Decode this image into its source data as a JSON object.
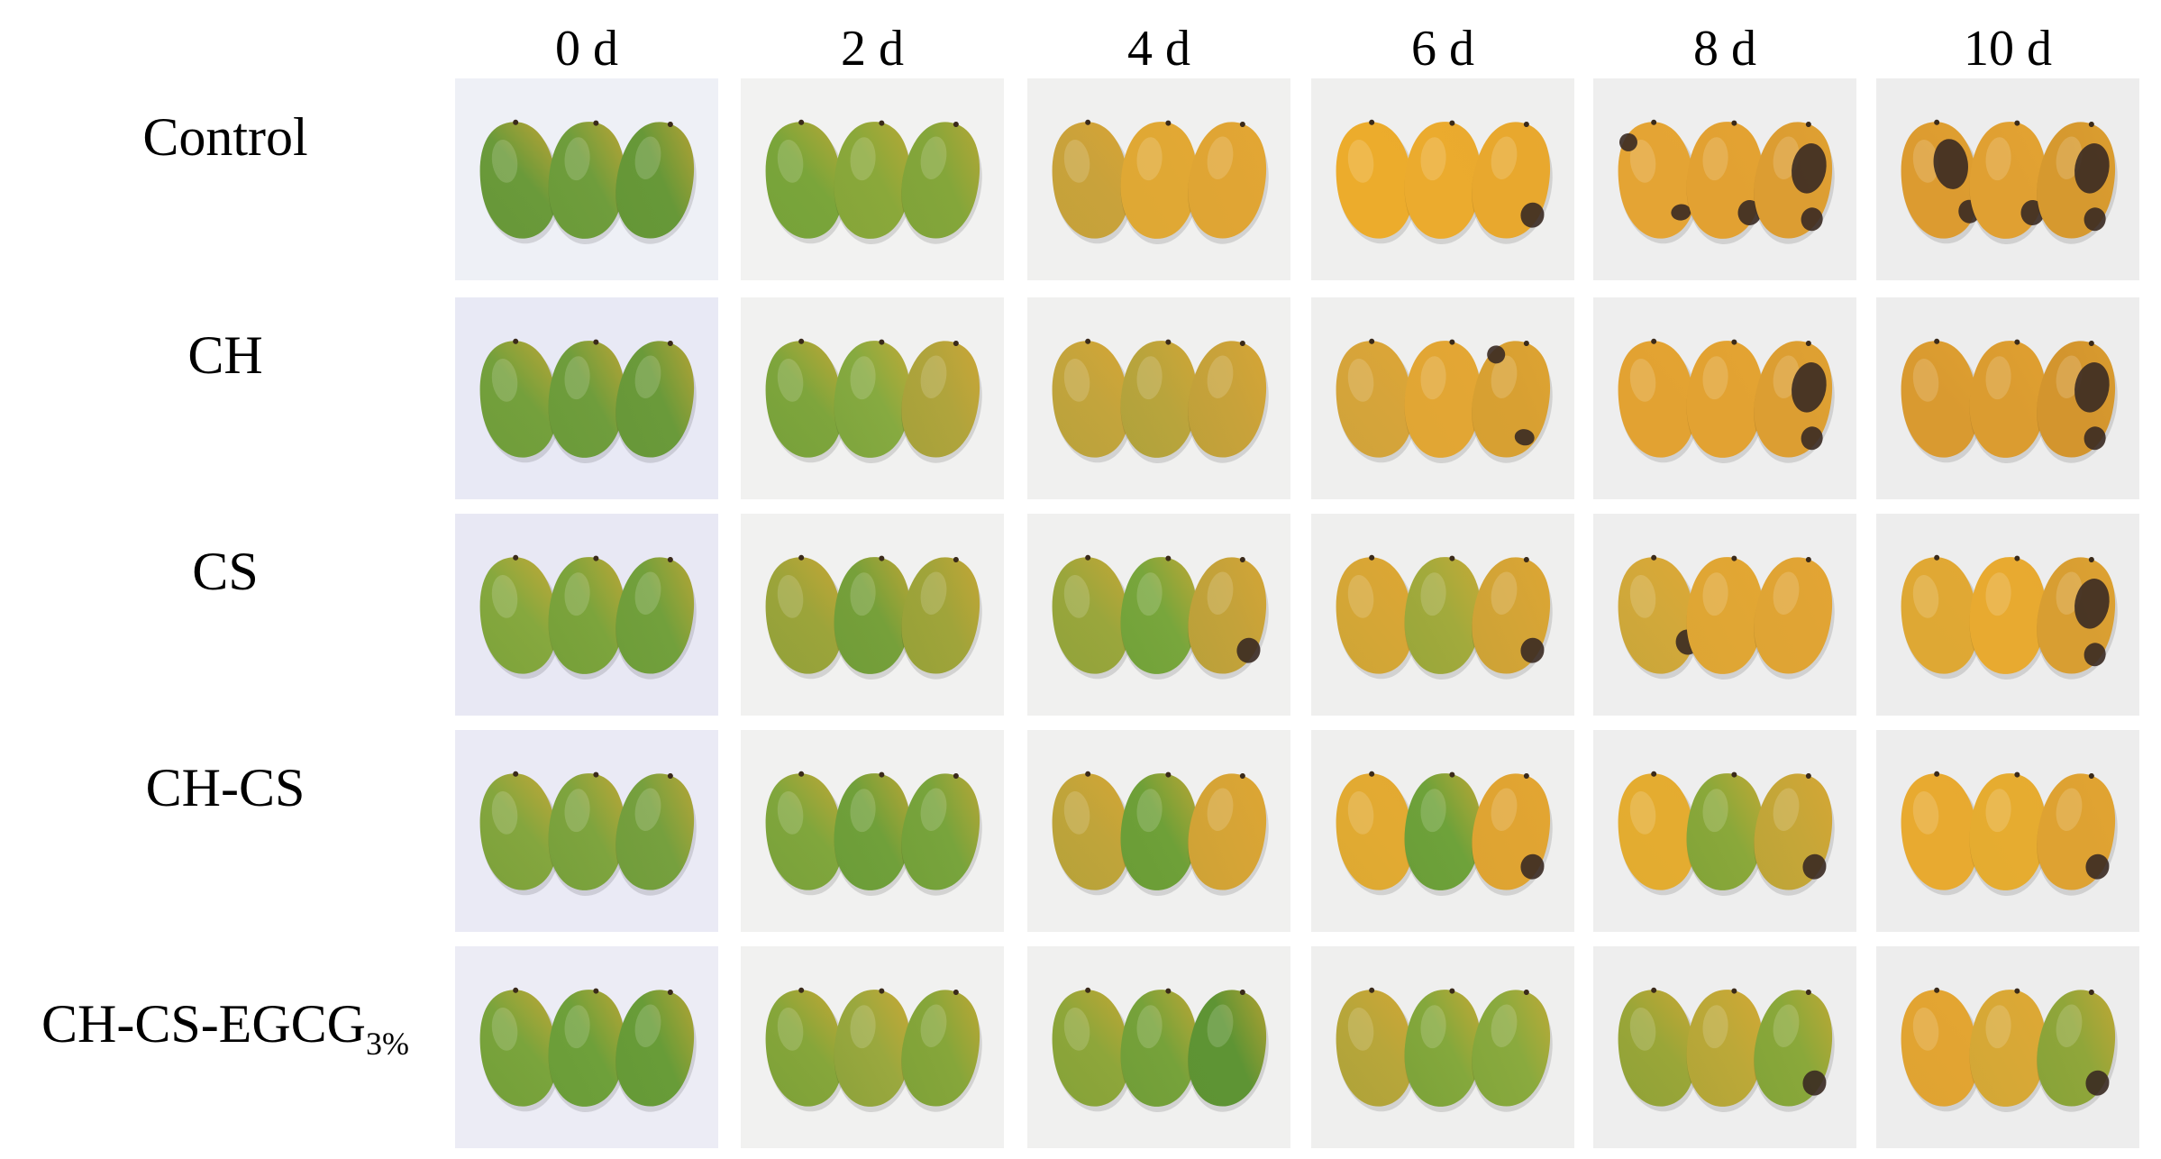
{
  "figure": {
    "days": [
      "0 d",
      "2 d",
      "4 d",
      "6 d",
      "8 d",
      "10 d"
    ],
    "treatments": [
      {
        "label": "Control",
        "label_sub": ""
      },
      {
        "label": "CH",
        "label_sub": ""
      },
      {
        "label": "CS",
        "label_sub": ""
      },
      {
        "label": "CH-CS",
        "label_sub": ""
      },
      {
        "label": "CH-CS-EGCG",
        "label_sub": "3%"
      }
    ]
  },
  "photo_palettes": [
    [
      {
        "bg": "#eef0f6",
        "fruit": [
          {
            "c": "#6a9a3a",
            "y": 0.0,
            "s": 0
          },
          {
            "c": "#6f9d3c",
            "y": 0.0,
            "s": 0
          },
          {
            "c": "#679838",
            "y": 0.0,
            "s": 0
          }
        ]
      },
      {
        "bg": "#f2f2f1",
        "fruit": [
          {
            "c": "#7aa53a",
            "y": 0.45,
            "s": 0
          },
          {
            "c": "#8aa83a",
            "y": 0.55,
            "s": 0
          },
          {
            "c": "#84a63a",
            "y": 0.45,
            "s": 0
          }
        ]
      },
      {
        "bg": "#f0f0ef",
        "fruit": [
          {
            "c": "#c9a23b",
            "y": 0.8,
            "s": 0
          },
          {
            "c": "#e0a834",
            "y": 0.95,
            "s": 0
          },
          {
            "c": "#e0a534",
            "y": 0.95,
            "s": 0
          }
        ]
      },
      {
        "bg": "#efefee",
        "fruit": [
          {
            "c": "#ecac2c",
            "y": 1.0,
            "s": 0
          },
          {
            "c": "#ebab2e",
            "y": 1.0,
            "s": 0
          },
          {
            "c": "#e8a82e",
            "y": 1.0,
            "s": 1
          }
        ]
      },
      {
        "bg": "#eeeeee",
        "fruit": [
          {
            "c": "#e4a434",
            "y": 1.0,
            "s": 2
          },
          {
            "c": "#e2a132",
            "y": 1.0,
            "s": 1
          },
          {
            "c": "#dc9d32",
            "y": 1.0,
            "s": 3
          }
        ]
      },
      {
        "bg": "#ededed",
        "fruit": [
          {
            "c": "#dc9b30",
            "y": 1.0,
            "s": 3
          },
          {
            "c": "#e0a032",
            "y": 1.0,
            "s": 1
          },
          {
            "c": "#d6992f",
            "y": 1.0,
            "s": 3
          }
        ]
      }
    ],
    [
      {
        "bg": "#e8e9f5",
        "fruit": [
          {
            "c": "#74a03c",
            "y": 0.2,
            "s": 0
          },
          {
            "c": "#6f9d3c",
            "y": 0.05,
            "s": 0
          },
          {
            "c": "#6a9a3a",
            "y": 0.0,
            "s": 0
          }
        ]
      },
      {
        "bg": "#f1f1f0",
        "fruit": [
          {
            "c": "#7ea53c",
            "y": 0.2,
            "s": 0
          },
          {
            "c": "#86aa40",
            "y": 0.15,
            "s": 0
          },
          {
            "c": "#b0a43c",
            "y": 0.45,
            "s": 0
          }
        ]
      },
      {
        "bg": "#f0f0ef",
        "fruit": [
          {
            "c": "#c3a43c",
            "y": 0.6,
            "s": 0
          },
          {
            "c": "#b9a43c",
            "y": 0.55,
            "s": 0
          },
          {
            "c": "#c8a23a",
            "y": 0.6,
            "s": 0
          }
        ]
      },
      {
        "bg": "#efefee",
        "fruit": [
          {
            "c": "#d6a43a",
            "y": 0.8,
            "s": 0
          },
          {
            "c": "#e2a634",
            "y": 0.95,
            "s": 0
          },
          {
            "c": "#d8a032",
            "y": 0.95,
            "s": 2
          }
        ]
      },
      {
        "bg": "#eeeeee",
        "fruit": [
          {
            "c": "#e2a232",
            "y": 1.0,
            "s": 0
          },
          {
            "c": "#e2a232",
            "y": 1.0,
            "s": 0
          },
          {
            "c": "#dc9e32",
            "y": 1.0,
            "s": 3
          }
        ]
      },
      {
        "bg": "#ededed",
        "fruit": [
          {
            "c": "#d99a30",
            "y": 1.0,
            "s": 0
          },
          {
            "c": "#db9c30",
            "y": 1.0,
            "s": 0
          },
          {
            "c": "#d3952e",
            "y": 1.0,
            "s": 3
          }
        ]
      }
    ],
    [
      {
        "bg": "#e8e8f4",
        "fruit": [
          {
            "c": "#86a83e",
            "y": 0.15,
            "s": 0
          },
          {
            "c": "#7ca43c",
            "y": 0.1,
            "s": 0
          },
          {
            "c": "#72a03c",
            "y": 0.05,
            "s": 0
          }
        ]
      },
      {
        "bg": "#f1f1f0",
        "fruit": [
          {
            "c": "#9ca43a",
            "y": 0.4,
            "s": 0
          },
          {
            "c": "#76a03a",
            "y": 0.1,
            "s": 0
          },
          {
            "c": "#a0a43a",
            "y": 0.35,
            "s": 0
          }
        ]
      },
      {
        "bg": "#f0f0ef",
        "fruit": [
          {
            "c": "#9aa63c",
            "y": 0.45,
            "s": 0
          },
          {
            "c": "#78a63c",
            "y": 0.05,
            "s": 0
          },
          {
            "c": "#c4a23a",
            "y": 0.55,
            "s": 1
          }
        ]
      },
      {
        "bg": "#efefee",
        "fruit": [
          {
            "c": "#d6a636",
            "y": 0.75,
            "s": 0
          },
          {
            "c": "#a2aa3c",
            "y": 0.45,
            "s": 0
          },
          {
            "c": "#d4a436",
            "y": 0.7,
            "s": 1
          }
        ]
      },
      {
        "bg": "#eeeeee",
        "fruit": [
          {
            "c": "#d2a83a",
            "y": 0.7,
            "s": 1
          },
          {
            "c": "#e0a634",
            "y": 0.9,
            "s": 0
          },
          {
            "c": "#e0a434",
            "y": 0.95,
            "s": 0
          }
        ]
      },
      {
        "bg": "#ededed",
        "fruit": [
          {
            "c": "#dfa834",
            "y": 0.95,
            "s": 0
          },
          {
            "c": "#e8aa30",
            "y": 1.0,
            "s": 0
          },
          {
            "c": "#d89e32",
            "y": 1.0,
            "s": 3
          }
        ]
      }
    ],
    [
      {
        "bg": "#eaeaf5",
        "fruit": [
          {
            "c": "#84a63e",
            "y": 0.15,
            "s": 0
          },
          {
            "c": "#7ea43e",
            "y": 0.1,
            "s": 0
          },
          {
            "c": "#76a03e",
            "y": 0.05,
            "s": 0
          }
        ]
      },
      {
        "bg": "#f1f1f0",
        "fruit": [
          {
            "c": "#80a63c",
            "y": 0.2,
            "s": 0
          },
          {
            "c": "#70a03a",
            "y": 0.05,
            "s": 0
          },
          {
            "c": "#78a43c",
            "y": 0.1,
            "s": 0
          }
        ]
      },
      {
        "bg": "#f0f0ef",
        "fruit": [
          {
            "c": "#c0a43a",
            "y": 0.6,
            "s": 0
          },
          {
            "c": "#6ea038",
            "y": 0.05,
            "s": 0
          },
          {
            "c": "#d6a436",
            "y": 0.7,
            "s": 0
          }
        ]
      },
      {
        "bg": "#efefee",
        "fruit": [
          {
            "c": "#e2aa32",
            "y": 0.85,
            "s": 0
          },
          {
            "c": "#6ea23a",
            "y": 0.0,
            "s": 0
          },
          {
            "c": "#e0a432",
            "y": 0.9,
            "s": 1
          }
        ]
      },
      {
        "bg": "#eeeeee",
        "fruit": [
          {
            "c": "#e4ac30",
            "y": 0.95,
            "s": 0
          },
          {
            "c": "#8aa83a",
            "y": 0.2,
            "s": 0
          },
          {
            "c": "#c6a638",
            "y": 0.6,
            "s": 1
          }
        ]
      },
      {
        "bg": "#ededed",
        "fruit": [
          {
            "c": "#e8aa30",
            "y": 1.0,
            "s": 0
          },
          {
            "c": "#e6ac30",
            "y": 0.95,
            "s": 0
          },
          {
            "c": "#dea232",
            "y": 1.0,
            "s": 1
          }
        ]
      }
    ],
    [
      {
        "bg": "#ececf5",
        "fruit": [
          {
            "c": "#7aa43c",
            "y": 0.1,
            "s": 0
          },
          {
            "c": "#6ea03a",
            "y": 0.05,
            "s": 0
          },
          {
            "c": "#689c38",
            "y": 0.0,
            "s": 0
          }
        ]
      },
      {
        "bg": "#f1f1f0",
        "fruit": [
          {
            "c": "#86a63a",
            "y": 0.15,
            "s": 0
          },
          {
            "c": "#9aa83e",
            "y": 0.1,
            "s": 0
          },
          {
            "c": "#86a63a",
            "y": 0.15,
            "s": 0
          }
        ]
      },
      {
        "bg": "#f0f0ef",
        "fruit": [
          {
            "c": "#8ea63a",
            "y": 0.3,
            "s": 0
          },
          {
            "c": "#76a23a",
            "y": 0.05,
            "s": 0
          },
          {
            "c": "#5e9434",
            "y": 0.0,
            "s": 0
          }
        ]
      },
      {
        "bg": "#efefee",
        "fruit": [
          {
            "c": "#b8a63a",
            "y": 0.55,
            "s": 0
          },
          {
            "c": "#84a83c",
            "y": 0.05,
            "s": 0
          },
          {
            "c": "#8aaa3e",
            "y": 0.2,
            "s": 0
          }
        ]
      },
      {
        "bg": "#eeeeee",
        "fruit": [
          {
            "c": "#9aa638",
            "y": 0.35,
            "s": 0
          },
          {
            "c": "#bca838",
            "y": 0.5,
            "s": 0
          },
          {
            "c": "#8aa83a",
            "y": 0.2,
            "s": 1
          }
        ]
      },
      {
        "bg": "#ededed",
        "fruit": [
          {
            "c": "#e2a432",
            "y": 0.9,
            "s": 0
          },
          {
            "c": "#d8a836",
            "y": 0.8,
            "s": 0
          },
          {
            "c": "#90a63a",
            "y": 0.25,
            "s": 1
          }
        ]
      }
    ]
  ]
}
